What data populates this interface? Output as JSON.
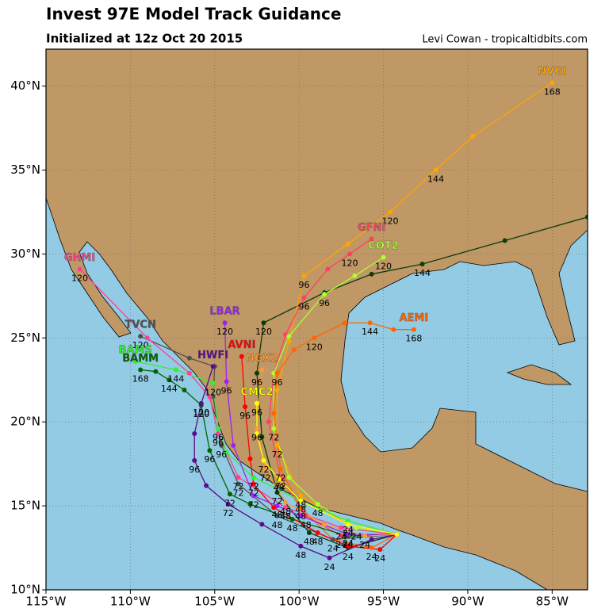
{
  "chart_data": {
    "type": "track-map",
    "title": "Invest 97E Model Track Guidance",
    "subtitle": "Initialized at 12z Oct 20 2015",
    "credit": "Levi Cowan - tropicaltidbits.com",
    "xlim": [
      -115,
      -82.9
    ],
    "ylim": [
      10,
      42.2
    ],
    "grid": true,
    "xticks": [
      {
        "value": -115,
        "label": "115°W"
      },
      {
        "value": -110,
        "label": "110°W"
      },
      {
        "value": -105,
        "label": "105°W"
      },
      {
        "value": -100,
        "label": "100°W"
      },
      {
        "value": -95,
        "label": "95°W"
      },
      {
        "value": -90,
        "label": "90°W"
      },
      {
        "value": -85,
        "label": "85°W"
      }
    ],
    "yticks": [
      {
        "value": 10,
        "label": "10°N"
      },
      {
        "value": 15,
        "label": "15°N"
      },
      {
        "value": 20,
        "label": "20°N"
      },
      {
        "value": 25,
        "label": "25°N"
      },
      {
        "value": 30,
        "label": "30°N"
      },
      {
        "value": 35,
        "label": "35°N"
      },
      {
        "value": 40,
        "label": "40°N"
      }
    ],
    "series": [
      {
        "color": "#0a3d0a",
        "x": [
          -94.2,
          -97.1,
          -99.4,
          -101.3,
          -102.2,
          -102.5,
          -102.1,
          -98.5,
          -95.7,
          -92.7,
          -87.8,
          -82.9
        ],
        "values": [
          13.3,
          12.5,
          13.4,
          15.8,
          19.1,
          22.9,
          25.9,
          27.7,
          28.8,
          29.4,
          30.8,
          32.2
        ],
        "hours": [
          null,
          24,
          48,
          72,
          null,
          96,
          120,
          null,
          null,
          144,
          null,
          null
        ]
      },
      {
        "name": "NVGI",
        "color": "#ffa500",
        "x": [
          -94.2,
          -97.1,
          -99.9,
          -101.3,
          -101.3,
          -100.6,
          -99.7,
          -97.1,
          -94.6,
          -91.9,
          -89.7,
          -85.0
        ],
        "values": [
          13.3,
          13.9,
          15.6,
          18.6,
          21.9,
          24.8,
          28.7,
          30.6,
          32.5,
          35.0,
          37.0,
          40.2
        ],
        "hours": [
          null,
          24,
          48,
          72,
          null,
          null,
          96,
          null,
          120,
          144,
          null,
          168
        ]
      },
      {
        "name": "GFNI",
        "color": "#ff4060",
        "x": [
          -94.2,
          -97.5,
          -99.6,
          -101.1,
          -101.8,
          -101.5,
          -100.8,
          -99.7,
          -98.3,
          -97.0,
          -95.7
        ],
        "values": [
          13.3,
          13.2,
          14.4,
          16.7,
          20.0,
          22.9,
          25.2,
          27.4,
          29.1,
          30.0,
          30.9
        ],
        "hours": [
          null,
          24,
          48,
          72,
          null,
          null,
          null,
          96,
          null,
          120,
          null
        ]
      },
      {
        "name": "COT2",
        "color": "#adff2f",
        "x": [
          -94.2,
          -96.6,
          -98.9,
          -100.6,
          -101.5,
          -101.5,
          -100.6,
          -98.5,
          -96.7,
          -95.0
        ],
        "values": [
          13.3,
          13.7,
          15.1,
          16.7,
          19.6,
          22.9,
          25.1,
          27.6,
          28.7,
          29.8
        ],
        "hours": [
          null,
          24,
          48,
          null,
          72,
          null,
          null,
          96,
          null,
          120
        ]
      },
      {
        "name": "AEMI",
        "color": "#ff6600",
        "x": [
          -94.2,
          -95.7,
          -98.0,
          -99.9,
          -101.1,
          -101.5,
          -101.3,
          -100.3,
          -99.1,
          -97.3,
          -95.8,
          -94.4,
          -93.2
        ],
        "values": [
          13.3,
          12.5,
          13.0,
          14.9,
          17.2,
          20.5,
          22.9,
          24.3,
          25.0,
          25.9,
          25.9,
          25.5,
          25.5
        ],
        "hours": [
          null,
          24,
          null,
          48,
          72,
          null,
          96,
          null,
          120,
          null,
          144,
          null,
          168
        ]
      },
      {
        "name": "TVCN",
        "color": "#505050",
        "x": [
          -94.2,
          -98.0,
          -101.3,
          -103.6,
          -104.6,
          -105.1,
          -105.0,
          -106.5,
          -109.4
        ],
        "values": [
          13.3,
          13.0,
          14.4,
          16.3,
          18.6,
          21.5,
          23.3,
          23.8,
          25.1
        ],
        "hours": [
          null,
          24,
          48,
          72,
          96,
          null,
          null,
          null,
          120
        ]
      },
      {
        "name": "GHMI",
        "color": "#ff3f8f",
        "x": [
          -94.2,
          -97.5,
          -100.8,
          -103.6,
          -104.8,
          -105.3,
          -106.5,
          -109.0,
          -113.0
        ],
        "values": [
          13.3,
          13.7,
          14.9,
          16.7,
          19.3,
          21.5,
          22.9,
          25.0,
          29.1
        ],
        "hours": [
          null,
          24,
          48,
          72,
          96,
          null,
          null,
          null,
          120
        ]
      },
      {
        "name": "BAMS",
        "color": "#33ee33",
        "x": [
          -94.2,
          -97.1,
          -99.9,
          -102.7,
          -104.3,
          -104.8,
          -105.1,
          -107.3,
          -109.7
        ],
        "values": [
          13.3,
          14.1,
          15.3,
          16.7,
          18.2,
          19.6,
          22.3,
          23.1,
          23.6
        ],
        "hours": [
          null,
          24,
          48,
          72,
          null,
          96,
          120,
          144,
          null
        ]
      },
      {
        "name": "BAMM",
        "color": "#006400",
        "x": [
          -94.2,
          -97.1,
          -100.4,
          -102.9,
          -104.1,
          -105.3,
          -105.8,
          -106.8,
          -107.7,
          -108.5,
          -109.4
        ],
        "values": [
          13.3,
          13.2,
          14.2,
          15.1,
          15.7,
          18.3,
          21.0,
          21.9,
          22.5,
          23.0,
          23.1
        ],
        "hours": [
          null,
          24,
          48,
          null,
          72,
          96,
          120,
          null,
          144,
          null,
          168
        ]
      },
      {
        "name": "HWFI",
        "color": "#5a0a8a",
        "x": [
          -94.2,
          -95.7,
          -98.2,
          -99.9,
          -102.2,
          -104.2,
          -105.5,
          -106.2,
          -106.2,
          -105.8,
          -105.1
        ],
        "values": [
          13.3,
          13.0,
          11.9,
          12.6,
          13.9,
          15.1,
          16.2,
          17.7,
          19.3,
          21.1,
          23.3
        ],
        "hours": [
          null,
          null,
          24,
          48,
          null,
          72,
          null,
          96,
          null,
          120,
          null
        ]
      },
      {
        "name": "LBAR",
        "color": "#a020f0",
        "x": [
          -94.2,
          -97.1,
          -99.9,
          -101.3,
          -102.7,
          -103.9,
          -104.3,
          -104.4
        ],
        "values": [
          13.3,
          13.3,
          14.4,
          15.0,
          15.6,
          18.6,
          22.4,
          25.9
        ],
        "hours": [
          null,
          24,
          null,
          48,
          72,
          null,
          96,
          120
        ]
      },
      {
        "name": "AVNI",
        "color": "#ff0000",
        "x": [
          -94.2,
          -95.2,
          -97.1,
          -98.9,
          -101.5,
          -102.7,
          -102.9,
          -103.2,
          -103.4
        ],
        "values": [
          13.3,
          12.4,
          12.6,
          13.4,
          14.9,
          16.3,
          17.8,
          20.9,
          23.9
        ],
        "hours": [
          null,
          24,
          null,
          48,
          null,
          72,
          null,
          96,
          null
        ]
      },
      {
        "name": "NGX2",
        "color": "#ff9933",
        "x": [
          -94.2,
          -96.1,
          -98.5,
          -100.8,
          -102.0,
          -102.5,
          -102.2
        ],
        "values": [
          13.3,
          13.2,
          13.9,
          15.2,
          17.2,
          19.6,
          23.1
        ],
        "hours": [
          null,
          24,
          null,
          48,
          72,
          96,
          null
        ]
      },
      {
        "name": "CMC2",
        "color": "#ffff00",
        "x": [
          -94.2,
          -97.1,
          -99.9,
          -101.2,
          -102.1,
          -102.5,
          -102.5
        ],
        "values": [
          13.3,
          13.9,
          15.3,
          16.6,
          17.7,
          19.3,
          21.1
        ],
        "hours": [
          null,
          24,
          null,
          48,
          72,
          null,
          96
        ]
      }
    ]
  }
}
